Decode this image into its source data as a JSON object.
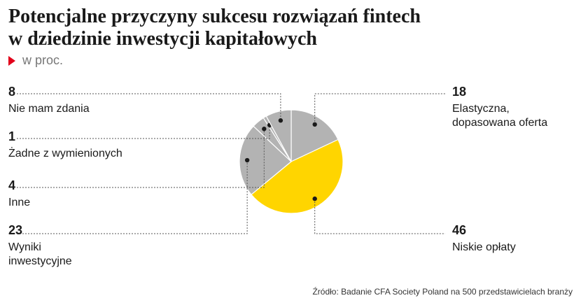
{
  "title_line1": "Potencjalne przyczyny sukcesu rozwiązań fintech",
  "title_line2": "w dziedzinie inwestycji kapitałowych",
  "subtitle": "w proc.",
  "source": "Źródło: Badanie CFA Society Poland na 500 przedstawicielach branży",
  "colors": {
    "highlight": "#ffd500",
    "gray": "#b3b3b3",
    "gray_dark": "#9f9f9f",
    "marker": "#1a1a1a",
    "accent_red": "#e2001a"
  },
  "chart_data": {
    "type": "pie",
    "unit": "w proc.",
    "slices": [
      {
        "key": "elastyczna",
        "value": 18,
        "label_lines": [
          "Elastyczna,",
          "dopasowana oferta"
        ],
        "highlight": false
      },
      {
        "key": "niskie",
        "value": 46,
        "label_lines": [
          "Niskie opłaty"
        ],
        "highlight": true
      },
      {
        "key": "wyniki",
        "value": 23,
        "label_lines": [
          "Wyniki",
          "inwestycyjne"
        ],
        "highlight": false
      },
      {
        "key": "inne",
        "value": 4,
        "label_lines": [
          "Inne"
        ],
        "highlight": false
      },
      {
        "key": "zadne",
        "value": 1,
        "label_lines": [
          "Żadne z wymienionych"
        ],
        "highlight": false
      },
      {
        "key": "nie_mam",
        "value": 8,
        "label_lines": [
          "Nie mam zdania"
        ],
        "highlight": false
      }
    ]
  }
}
